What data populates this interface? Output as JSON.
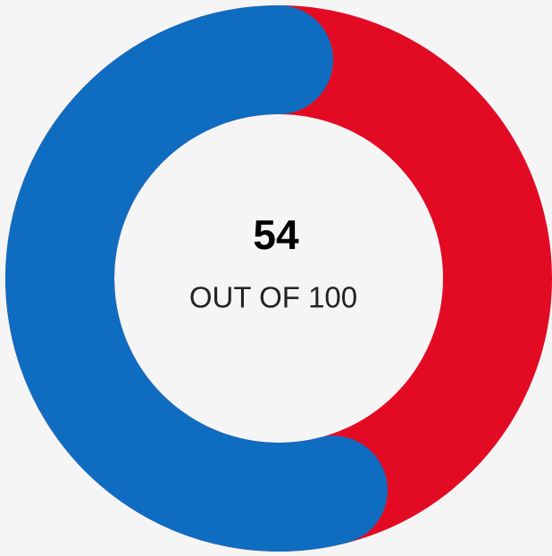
{
  "chart_data": {
    "type": "gauge",
    "value": 54,
    "max": 100,
    "label": "OUT OF 100",
    "color": "#0f6dc1",
    "track_color": "#e30b24"
  }
}
